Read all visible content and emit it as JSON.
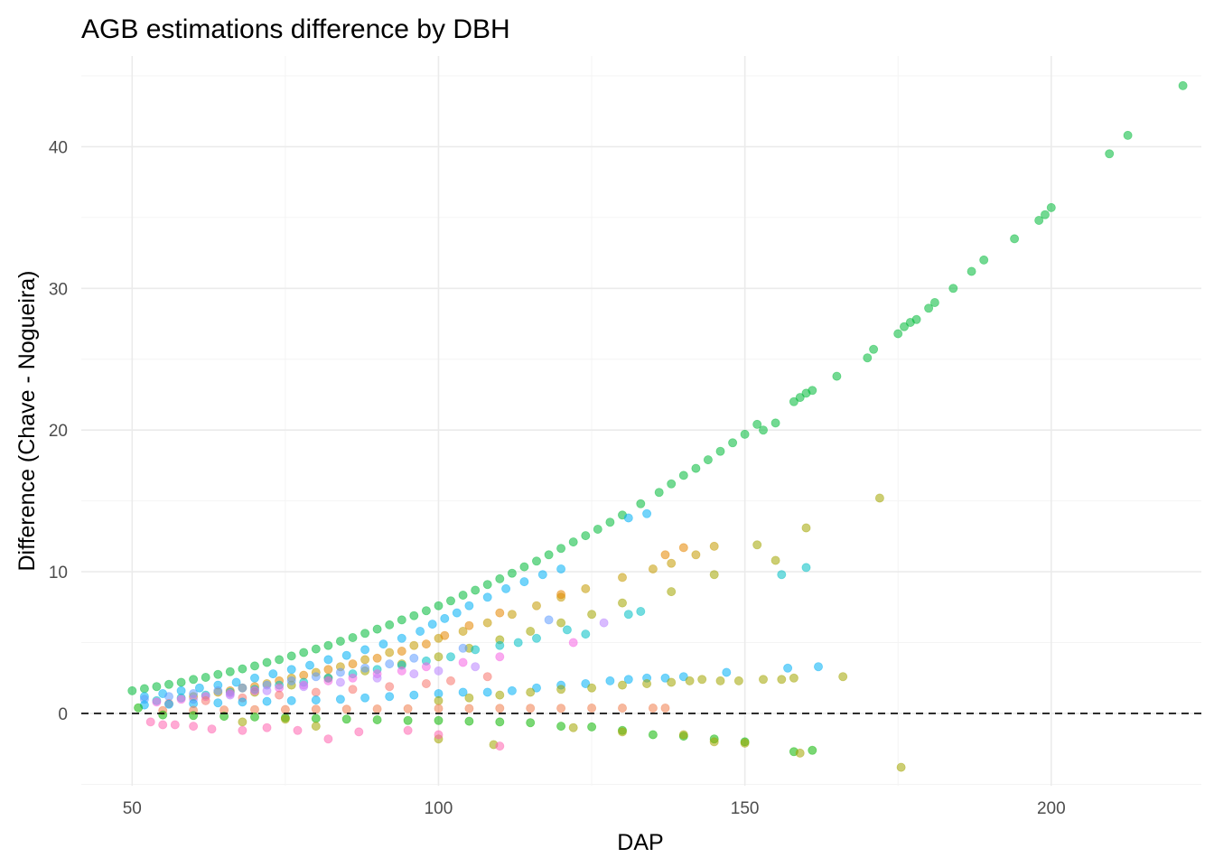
{
  "chart_data": {
    "type": "scatter",
    "title": "AGB estimations difference by DBH",
    "xlabel": "DAP",
    "ylabel": "Difference (Chave - Nogueira)",
    "xlim": [
      41.7,
      224.5
    ],
    "ylim": [
      -5.1,
      46.4
    ],
    "x_ticks": [
      50,
      100,
      150,
      200
    ],
    "x_tick_labels": [
      "50",
      "100",
      "150",
      "200"
    ],
    "y_ticks": [
      0,
      10,
      20,
      30,
      40
    ],
    "y_tick_labels": [
      "0",
      "10",
      "20",
      "30",
      "40"
    ],
    "x_minor_ticks": [
      75,
      125,
      175,
      225
    ],
    "y_minor_ticks": [
      -5,
      5,
      15,
      25,
      35,
      45
    ],
    "grid": true,
    "legend": "none",
    "point_alpha": 0.55,
    "reference_line": {
      "y": 0,
      "style": "dashed",
      "color": "#000000"
    },
    "series": [
      {
        "name": "group-green-upper",
        "color": "#00BA38",
        "x": [
          50,
          52,
          54,
          56,
          58,
          60,
          62,
          64,
          66,
          68,
          70,
          72,
          74,
          76,
          78,
          80,
          82,
          84,
          86,
          88,
          90,
          92,
          94,
          96,
          98,
          100,
          102,
          104,
          106,
          108,
          110,
          112,
          114,
          116,
          118,
          120,
          122,
          124,
          126,
          128,
          130,
          133,
          136,
          138,
          140,
          142,
          144,
          146,
          148,
          150,
          152,
          153,
          155,
          158,
          159,
          160,
          161,
          165,
          170,
          171,
          175,
          176,
          177,
          178,
          180,
          181,
          184,
          187,
          189,
          194,
          198,
          199,
          200,
          209.5,
          212.5,
          221.5
        ],
        "y": [
          1.6,
          1.75,
          1.9,
          2.05,
          2.2,
          2.4,
          2.55,
          2.75,
          2.95,
          3.15,
          3.35,
          3.6,
          3.8,
          4.05,
          4.3,
          4.55,
          4.8,
          5.1,
          5.35,
          5.65,
          5.95,
          6.25,
          6.6,
          6.9,
          7.25,
          7.6,
          7.95,
          8.35,
          8.7,
          9.1,
          9.5,
          9.9,
          10.35,
          10.75,
          11.2,
          11.65,
          12.1,
          12.55,
          13.0,
          13.5,
          14.0,
          14.8,
          15.6,
          16.2,
          16.8,
          17.3,
          17.9,
          18.5,
          19.1,
          19.7,
          20.4,
          20.0,
          20.5,
          22.0,
          22.3,
          22.6,
          22.8,
          23.8,
          25.1,
          25.7,
          26.8,
          27.3,
          27.6,
          27.8,
          28.6,
          29.0,
          30.0,
          31.2,
          32.0,
          33.5,
          34.8,
          35.2,
          35.7,
          39.5,
          40.8,
          44.3
        ]
      },
      {
        "name": "group-sky-blue-upper",
        "color": "#00B0F6",
        "x": [
          52,
          55,
          58,
          61,
          64,
          67,
          70,
          73,
          76,
          79,
          82,
          85,
          88,
          91,
          94,
          97,
          99,
          101,
          103,
          105,
          108,
          111,
          114,
          117,
          120,
          131,
          134
        ],
        "y": [
          1.2,
          1.4,
          1.6,
          1.8,
          2.0,
          2.2,
          2.5,
          2.8,
          3.1,
          3.4,
          3.8,
          4.1,
          4.5,
          4.9,
          5.3,
          5.8,
          6.3,
          6.7,
          7.1,
          7.6,
          8.2,
          8.8,
          9.3,
          9.8,
          10.2,
          13.8,
          14.1
        ]
      },
      {
        "name": "group-gold",
        "color": "#C49A00",
        "x": [
          60,
          64,
          68,
          72,
          76,
          80,
          84,
          88,
          92,
          96,
          100,
          104,
          108,
          112,
          116,
          120,
          124,
          130,
          135,
          138,
          142,
          145
        ],
        "y": [
          1.2,
          1.5,
          1.8,
          2.1,
          2.5,
          2.9,
          3.3,
          3.8,
          4.3,
          4.8,
          5.3,
          5.8,
          6.4,
          7.0,
          7.6,
          8.2,
          8.8,
          9.6,
          10.2,
          10.6,
          11.2,
          11.8
        ]
      },
      {
        "name": "group-orange",
        "color": "#E58700",
        "x": [
          66,
          70,
          74,
          78,
          82,
          86,
          90,
          94,
          98,
          101,
          105,
          110,
          120,
          137,
          140
        ],
        "y": [
          1.6,
          1.9,
          2.3,
          2.7,
          3.1,
          3.5,
          3.9,
          4.4,
          4.9,
          5.5,
          6.2,
          7.1,
          8.4,
          11.2,
          11.7
        ]
      },
      {
        "name": "group-olive",
        "color": "#A3A500",
        "x": [
          70,
          76,
          82,
          88,
          94,
          100,
          105,
          110,
          115,
          120,
          125,
          130,
          138,
          145,
          152,
          155,
          160,
          172
        ],
        "y": [
          1.5,
          2.0,
          2.5,
          3.0,
          3.5,
          4.0,
          4.6,
          5.2,
          5.8,
          6.4,
          7.0,
          7.8,
          8.6,
          9.8,
          11.9,
          10.8,
          13.1,
          15.2
        ]
      },
      {
        "name": "group-teal",
        "color": "#00BFC4",
        "x": [
          54,
          58,
          62,
          66,
          70,
          74,
          78,
          82,
          86,
          90,
          94,
          98,
          102,
          106,
          110,
          113,
          116,
          121,
          124,
          131,
          133,
          156,
          160
        ],
        "y": [
          0.9,
          1.1,
          1.3,
          1.5,
          1.7,
          2.0,
          2.2,
          2.5,
          2.8,
          3.1,
          3.4,
          3.7,
          4.0,
          4.5,
          4.8,
          5.0,
          5.3,
          5.9,
          5.6,
          7.0,
          7.2,
          9.8,
          10.3
        ]
      },
      {
        "name": "group-periwinkle",
        "color": "#619CFF",
        "x": [
          52,
          56,
          60,
          64,
          68,
          72,
          76,
          80,
          84,
          88,
          92,
          96,
          104,
          118
        ],
        "y": [
          1.0,
          1.2,
          1.4,
          1.6,
          1.8,
          2.0,
          2.3,
          2.6,
          2.9,
          3.2,
          3.5,
          3.9,
          4.6,
          6.6
        ]
      },
      {
        "name": "group-magenta",
        "color": "#F564E3",
        "x": [
          54,
          58,
          62,
          66,
          70,
          74,
          78,
          82,
          86,
          90,
          94,
          98,
          104,
          110,
          122
        ],
        "y": [
          0.8,
          1.0,
          1.2,
          1.4,
          1.6,
          1.8,
          2.0,
          2.3,
          2.5,
          2.8,
          3.0,
          3.3,
          3.6,
          4.0,
          5.0
        ]
      },
      {
        "name": "group-violet",
        "color": "#B983FF",
        "x": [
          60,
          66,
          72,
          78,
          84,
          90,
          96,
          100,
          106,
          127
        ],
        "y": [
          1.0,
          1.3,
          1.6,
          1.9,
          2.2,
          2.5,
          2.8,
          3.0,
          3.3,
          6.4
        ]
      },
      {
        "name": "group-salmon",
        "color": "#F8766D",
        "x": [
          56,
          62,
          68,
          74,
          80,
          86,
          92,
          98,
          102,
          108
        ],
        "y": [
          0.7,
          0.9,
          1.1,
          1.3,
          1.5,
          1.7,
          1.9,
          2.1,
          2.3,
          2.6
        ]
      },
      {
        "name": "group-sky-blue-lower",
        "color": "#00B0F6",
        "x": [
          52,
          56,
          60,
          64,
          68,
          72,
          76,
          80,
          84,
          88,
          92,
          96,
          100,
          104,
          108,
          112,
          116,
          120,
          124,
          128,
          131,
          134,
          137,
          140,
          147,
          157,
          162
        ],
        "y": [
          0.6,
          0.65,
          0.7,
          0.75,
          0.8,
          0.85,
          0.9,
          0.95,
          1.0,
          1.1,
          1.2,
          1.3,
          1.4,
          1.5,
          1.5,
          1.6,
          1.8,
          2.0,
          2.1,
          2.3,
          2.4,
          2.5,
          2.5,
          2.6,
          2.9,
          3.2,
          3.3
        ]
      },
      {
        "name": "group-olive-lower",
        "color": "#A3A500",
        "x": [
          100,
          105,
          110,
          115,
          120,
          125,
          130,
          134,
          138,
          141,
          143,
          146,
          149,
          153,
          156,
          158,
          166
        ],
        "y": [
          0.9,
          1.1,
          1.3,
          1.5,
          1.7,
          1.8,
          2.0,
          2.1,
          2.2,
          2.3,
          2.4,
          2.3,
          2.3,
          2.4,
          2.4,
          2.5,
          2.6
        ]
      },
      {
        "name": "group-orange-near-zero",
        "color": "#F07E4D",
        "x": [
          55,
          60,
          65,
          70,
          75,
          80,
          85,
          90,
          95,
          100,
          105,
          110,
          115,
          120,
          125,
          130,
          135,
          137
        ],
        "y": [
          0.2,
          0.22,
          0.25,
          0.27,
          0.28,
          0.3,
          0.3,
          0.32,
          0.33,
          0.35,
          0.35,
          0.36,
          0.37,
          0.37,
          0.38,
          0.38,
          0.38,
          0.38
        ]
      },
      {
        "name": "group-green-below",
        "color": "#0CB702",
        "x": [
          51,
          55,
          60,
          65,
          70,
          75,
          80,
          85,
          90,
          95,
          100,
          105,
          110,
          115,
          120,
          125,
          130,
          135,
          140,
          145,
          150,
          158,
          161
        ],
        "y": [
          0.4,
          -0.1,
          -0.15,
          -0.2,
          -0.25,
          -0.3,
          -0.35,
          -0.4,
          -0.45,
          -0.5,
          -0.5,
          -0.55,
          -0.6,
          -0.65,
          -0.9,
          -0.95,
          -1.2,
          -1.5,
          -1.6,
          -1.8,
          -2.0,
          -2.7,
          -2.6
        ]
      },
      {
        "name": "group-olive-negative",
        "color": "#A3A500",
        "x": [
          68,
          75,
          80,
          100,
          109,
          122,
          130,
          140,
          145,
          150,
          159,
          175.5
        ],
        "y": [
          -0.6,
          -0.4,
          -0.9,
          -1.8,
          -2.2,
          -1.0,
          -1.3,
          -1.5,
          -2.0,
          -2.1,
          -2.8,
          -3.8
        ]
      },
      {
        "name": "group-pink-negative",
        "color": "#FF64B0",
        "x": [
          53,
          55,
          57,
          60,
          63,
          68,
          72,
          77,
          82,
          87,
          95,
          100,
          110
        ],
        "y": [
          -0.6,
          -0.8,
          -0.8,
          -0.9,
          -1.1,
          -1.2,
          -1.0,
          -1.2,
          -1.8,
          -1.3,
          -1.2,
          -1.5,
          -2.3
        ]
      }
    ]
  }
}
